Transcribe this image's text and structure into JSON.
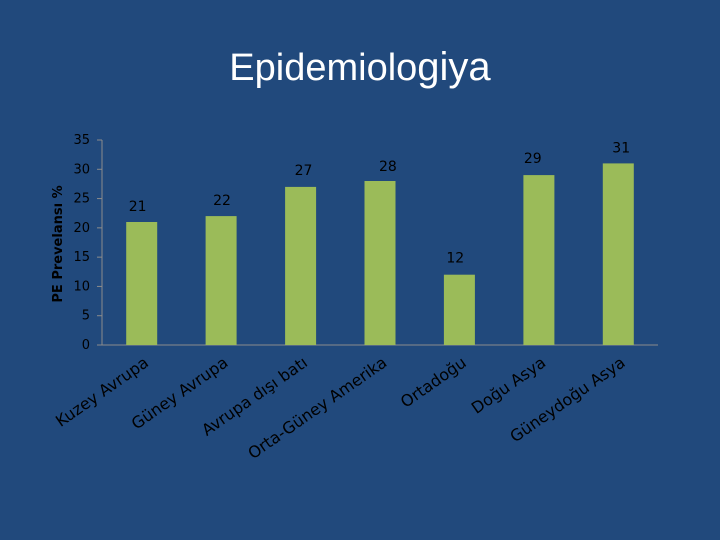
{
  "title": {
    "main": "Epidemiolo",
    "tail": "giya"
  },
  "colors": {
    "background": "#21497c",
    "bar": "#9bbb59",
    "axis": "#8c8c8c",
    "text": "#000000",
    "title": "#ffffff"
  },
  "chart_data": {
    "type": "bar",
    "title": "",
    "xlabel": "",
    "ylabel": "PE Prevelansı %",
    "ylim": [
      0,
      35
    ],
    "yticks": [
      0,
      5,
      10,
      15,
      20,
      25,
      30,
      35
    ],
    "grid": false,
    "legend": "none",
    "categories": [
      "Kuzey Avrupa",
      "Güney Avrupa",
      "Avrupa dışı batı",
      "Orta-Güney Amerika",
      "Ortadoğu",
      "Doğu Asya",
      "Güneydoğu Asya"
    ],
    "values": [
      21,
      22,
      27,
      28,
      12,
      29,
      31
    ],
    "data_labels": [
      "21",
      "22",
      "27",
      "28",
      "12",
      "29",
      "31"
    ]
  }
}
